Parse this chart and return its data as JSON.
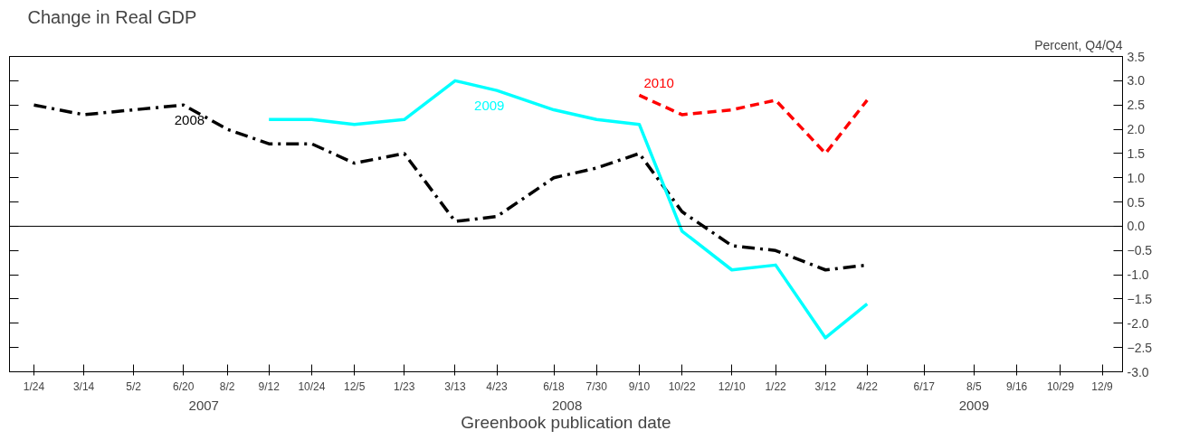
{
  "chart_data": {
    "type": "line",
    "title": "Change in Real GDP",
    "xlabel": "Greenbook publication date",
    "ylabel": "Percent, Q4/Q4",
    "xlim": [
      "2006-12-31",
      "2009-12-29"
    ],
    "xticks": [
      {
        "value": "2007-01-24",
        "label": "1/24"
      },
      {
        "value": "2007-03-14",
        "label": "3/14"
      },
      {
        "value": "2007-05-02",
        "label": "5/2"
      },
      {
        "value": "2007-06-20",
        "label": "6/20"
      },
      {
        "value": "2007-08-02",
        "label": "8/2"
      },
      {
        "value": "2007-09-12",
        "label": "9/12"
      },
      {
        "value": "2007-10-24",
        "label": "10/24"
      },
      {
        "value": "2007-12-05",
        "label": "12/5"
      },
      {
        "value": "2008-01-23",
        "label": "1/23"
      },
      {
        "value": "2008-03-13",
        "label": "3/13"
      },
      {
        "value": "2008-04-23",
        "label": "4/23"
      },
      {
        "value": "2008-06-18",
        "label": "6/18"
      },
      {
        "value": "2008-07-30",
        "label": "7/30"
      },
      {
        "value": "2008-09-10",
        "label": "9/10"
      },
      {
        "value": "2008-10-22",
        "label": "10/22"
      },
      {
        "value": "2008-12-10",
        "label": "12/10"
      },
      {
        "value": "2009-01-22",
        "label": "1/22"
      },
      {
        "value": "2009-03-12",
        "label": "3/12"
      },
      {
        "value": "2009-04-22",
        "label": "4/22"
      },
      {
        "value": "2009-06-17",
        "label": "6/17"
      },
      {
        "value": "2009-08-05",
        "label": "8/5"
      },
      {
        "value": "2009-09-16",
        "label": "9/16"
      },
      {
        "value": "2009-10-29",
        "label": "10/29"
      },
      {
        "value": "2009-12-09",
        "label": "12/9"
      }
    ],
    "x2lim": [
      "2006-12-31",
      "2009-12-29"
    ],
    "x2ticks": [
      {
        "value": "2007-07-10",
        "label": "2007"
      },
      {
        "value": "2008-07-01",
        "label": "2008"
      },
      {
        "value": "2009-08-05",
        "label": "2009"
      }
    ],
    "ylim": [
      -3.0,
      3.5
    ],
    "yticks": [
      {
        "value": -3,
        "label": "-3.0"
      },
      -2.5,
      {
        "value": -2,
        "label": "-2.0"
      },
      -1.5,
      {
        "value": -1,
        "label": "-1.0"
      },
      -0.5,
      {
        "value": 0,
        "label": "0.0"
      },
      0.5,
      {
        "value": 1,
        "label": "1.0"
      },
      1.5,
      {
        "value": 2,
        "label": "2.0"
      },
      2.5,
      {
        "value": 3,
        "label": "3.0"
      },
      3.5
    ],
    "ref_lines": [
      {
        "axis": "y",
        "value": 0,
        "color": "#000000"
      }
    ],
    "grid": false,
    "series": [
      {
        "name": "2008",
        "color": "#000000",
        "line_style": "dashdot",
        "x": [
          "2007-01-24",
          "2007-03-14",
          "2007-05-02",
          "2007-06-20",
          "2007-08-02",
          "2007-09-12",
          "2007-10-24",
          "2007-12-05",
          "2008-01-23",
          "2008-03-13",
          "2008-04-23",
          "2008-06-18",
          "2008-07-30",
          "2008-09-10",
          "2008-10-22",
          "2008-12-10",
          "2009-01-22",
          "2009-03-12",
          "2009-04-22"
        ],
        "values": [
          2.5,
          2.3,
          2.4,
          2.5,
          2.0,
          1.7,
          1.7,
          1.3,
          1.5,
          0.1,
          0.2,
          1.0,
          1.2,
          1.5,
          0.3,
          -0.4,
          -0.5,
          -0.9,
          -0.8
        ]
      },
      {
        "name": "2009",
        "color": "#00ffff",
        "line_style": "solid",
        "x": [
          "2007-09-12",
          "2007-10-24",
          "2007-12-05",
          "2008-01-23",
          "2008-03-13",
          "2008-04-23",
          "2008-06-18",
          "2008-07-30",
          "2008-09-10",
          "2008-10-22",
          "2008-12-10",
          "2009-01-22",
          "2009-03-12",
          "2009-04-22"
        ],
        "values": [
          2.2,
          2.2,
          2.1,
          2.2,
          3.0,
          2.8,
          2.4,
          2.2,
          2.1,
          -0.1,
          -0.9,
          -0.8,
          -2.3,
          -1.6
        ]
      },
      {
        "name": "2010",
        "color": "#ff0000",
        "line_style": "dashed",
        "x": [
          "2008-09-10",
          "2008-10-22",
          "2008-12-10",
          "2009-01-22",
          "2009-03-12",
          "2009-04-22"
        ],
        "values": [
          2.7,
          2.3,
          2.4,
          2.6,
          1.5,
          2.6
        ]
      }
    ]
  }
}
